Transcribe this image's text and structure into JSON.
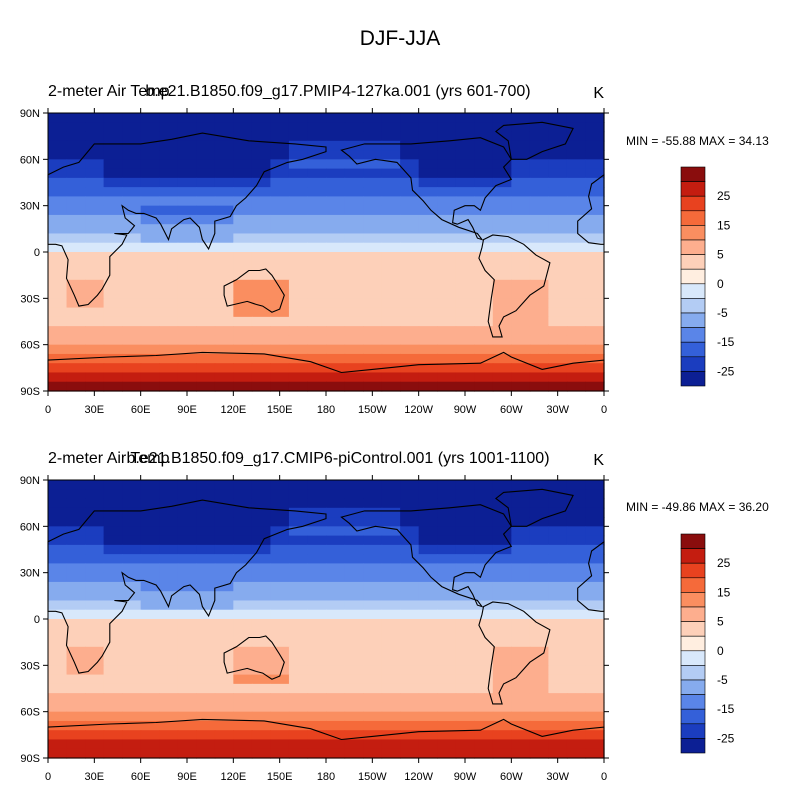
{
  "figure_title": "DJF-JJA",
  "chart_data": [
    {
      "type": "heatmap",
      "left_title": "2-meter Air Temp",
      "center_title": "b.e21.B1850.f09_g17.PMIP4-127ka.001 (yrs 601-700)",
      "units": "K",
      "stats": "MIN = -55.88 MAX =  34.13",
      "min": -55.88,
      "max": 34.13,
      "x_ticks": [
        "0",
        "30E",
        "60E",
        "90E",
        "120E",
        "150E",
        "180",
        "150W",
        "120W",
        "90W",
        "60W",
        "30W",
        "0"
      ],
      "y_ticks": [
        "90N",
        "60N",
        "30N",
        "0",
        "30S",
        "60S",
        "90S"
      ],
      "colorbar": {
        "labels": [
          "25",
          "15",
          "5",
          "0",
          "-5",
          "-15",
          "-25"
        ],
        "colors": [
          "#8a0d0d",
          "#c41d10",
          "#e8421f",
          "#f56a3a",
          "#fa8e60",
          "#fdae8e",
          "#fdd0b9",
          "#ffeee0",
          "#d8e8fb",
          "#b3ccf4",
          "#86abee",
          "#5a85e8",
          "#3460d9",
          "#1b3dbf",
          "#0c1f94"
        ]
      }
    },
    {
      "type": "heatmap",
      "left_title": "2-meter Air Temp",
      "center_title": "b.e21.B1850.f09_g17.CMIP6-piControl.001 (yrs 1001-1100)",
      "units": "K",
      "stats": "MIN = -49.86 MAX =  36.20",
      "min": -49.86,
      "max": 36.2,
      "x_ticks": [
        "0",
        "30E",
        "60E",
        "90E",
        "120E",
        "150E",
        "180",
        "150W",
        "120W",
        "90W",
        "60W",
        "30W",
        "0"
      ],
      "y_ticks": [
        "90N",
        "60N",
        "30N",
        "0",
        "30S",
        "60S",
        "90S"
      ],
      "colorbar": {
        "labels": [
          "25",
          "15",
          "5",
          "0",
          "-5",
          "-15",
          "-25"
        ],
        "colors": [
          "#8a0d0d",
          "#c41d10",
          "#e8421f",
          "#f56a3a",
          "#fa8e60",
          "#fdae8e",
          "#fdd0b9",
          "#ffeee0",
          "#d8e8fb",
          "#b3ccf4",
          "#86abee",
          "#5a85e8",
          "#3460d9",
          "#1b3dbf",
          "#0c1f94"
        ]
      }
    }
  ]
}
